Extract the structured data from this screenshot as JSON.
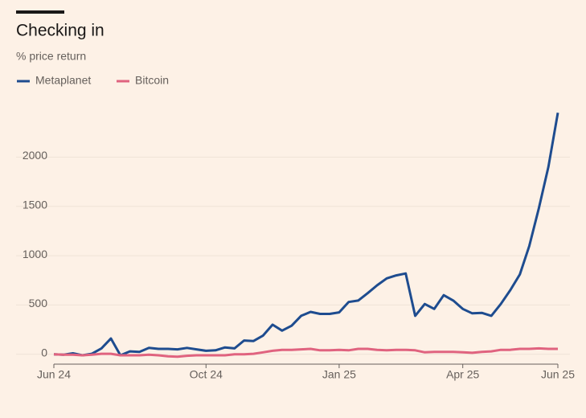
{
  "chart_data": {
    "type": "line",
    "title": "Checking in",
    "subtitle": "% price return",
    "categories": [
      "Jun 24",
      null,
      null,
      null,
      null,
      null,
      null,
      null,
      null,
      null,
      null,
      null,
      null,
      null,
      null,
      null,
      "Oct 24",
      null,
      null,
      null,
      null,
      null,
      null,
      null,
      null,
      null,
      null,
      null,
      null,
      null,
      "Jan 25",
      null,
      null,
      null,
      null,
      null,
      null,
      null,
      null,
      null,
      null,
      null,
      null,
      "Apr 25",
      null,
      null,
      null,
      null,
      null,
      null,
      null,
      null,
      null,
      "Jun 25"
    ],
    "series": [
      {
        "name": "Metaplanet",
        "color": "#1e4c8f",
        "values": [
          0,
          -5,
          10,
          -10,
          5,
          60,
          160,
          -10,
          30,
          25,
          65,
          55,
          55,
          50,
          65,
          50,
          35,
          40,
          70,
          60,
          140,
          135,
          190,
          300,
          240,
          290,
          390,
          430,
          410,
          410,
          425,
          530,
          545,
          620,
          700,
          770,
          800,
          820,
          390,
          510,
          460,
          600,
          545,
          460,
          415,
          420,
          390,
          510,
          650,
          810,
          1100,
          1480,
          1900,
          2450
        ]
      },
      {
        "name": "Bitcoin",
        "color": "#e0637f",
        "values": [
          0,
          -5,
          -5,
          -10,
          -5,
          5,
          5,
          -10,
          -10,
          -10,
          -5,
          -10,
          -20,
          -25,
          -15,
          -10,
          -10,
          -10,
          -10,
          0,
          0,
          5,
          20,
          35,
          45,
          45,
          50,
          55,
          40,
          40,
          45,
          40,
          55,
          55,
          45,
          40,
          45,
          45,
          40,
          20,
          25,
          25,
          25,
          20,
          15,
          25,
          30,
          45,
          45,
          55,
          55,
          60,
          55,
          55
        ]
      }
    ],
    "ylim": [
      -100,
      2550
    ],
    "yticks": [
      0,
      500,
      1000,
      1500,
      2000
    ],
    "grid": true,
    "legend": "top-left"
  }
}
